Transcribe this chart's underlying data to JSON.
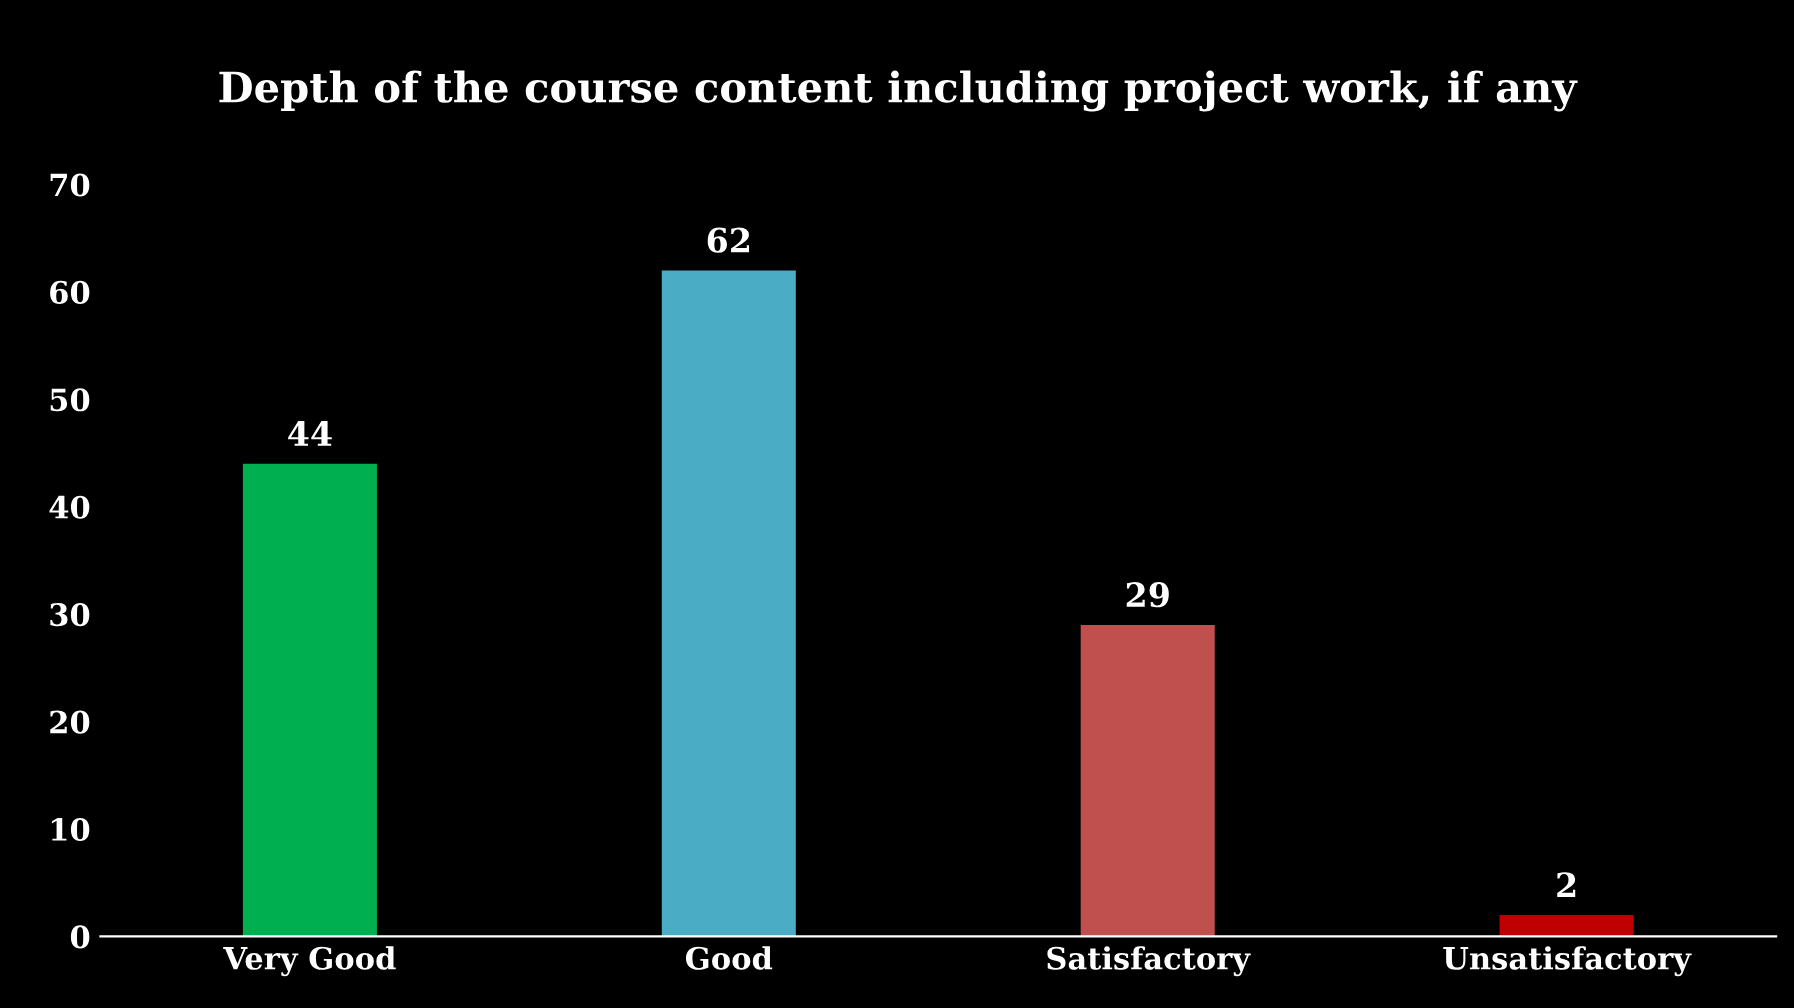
{
  "chart_data": {
    "type": "bar",
    "title": "Depth of the course content including project work, if any",
    "categories": [
      "Very Good",
      "Good",
      "Satisfactory",
      "Unsatisfactory"
    ],
    "values": [
      44,
      62,
      29,
      2
    ],
    "colors": [
      "#00b050",
      "#4bacc6",
      "#c0504d",
      "#c00000"
    ],
    "ylim": [
      0,
      70
    ],
    "yticks": [
      0,
      10,
      20,
      30,
      40,
      50,
      60,
      70
    ],
    "grid": false,
    "legend": false,
    "data_labels": true
  }
}
